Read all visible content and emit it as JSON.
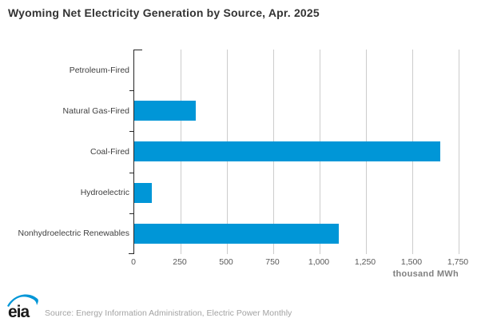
{
  "chart_data": {
    "type": "bar",
    "orientation": "horizontal",
    "title": "Wyoming Net Electricity Generation by Source, Apr. 2025",
    "categories": [
      "Petroleum-Fired",
      "Natural Gas-Fired",
      "Coal-Fired",
      "Hydroelectric",
      "Nonhydroelectric Renewables"
    ],
    "values": [
      0,
      334,
      1652,
      93,
      1105
    ],
    "xlabel": "",
    "ylabel": "",
    "unit_label": "thousand MWh",
    "xlim": [
      0,
      1750
    ],
    "xticks": [
      0,
      250,
      500,
      750,
      1000,
      1250,
      1500,
      1750
    ],
    "xtick_labels": [
      "0",
      "250",
      "500",
      "750",
      "1,000",
      "1,250",
      "1,500",
      "1,750"
    ],
    "grid": true,
    "legend": false,
    "bar_color": "#0096D7",
    "gridline_color": "#cccccc",
    "axis_color": "#262626"
  },
  "footer": {
    "logo_text": "eia",
    "source": "Source: Energy Information Administration, Electric Power Monthly"
  }
}
